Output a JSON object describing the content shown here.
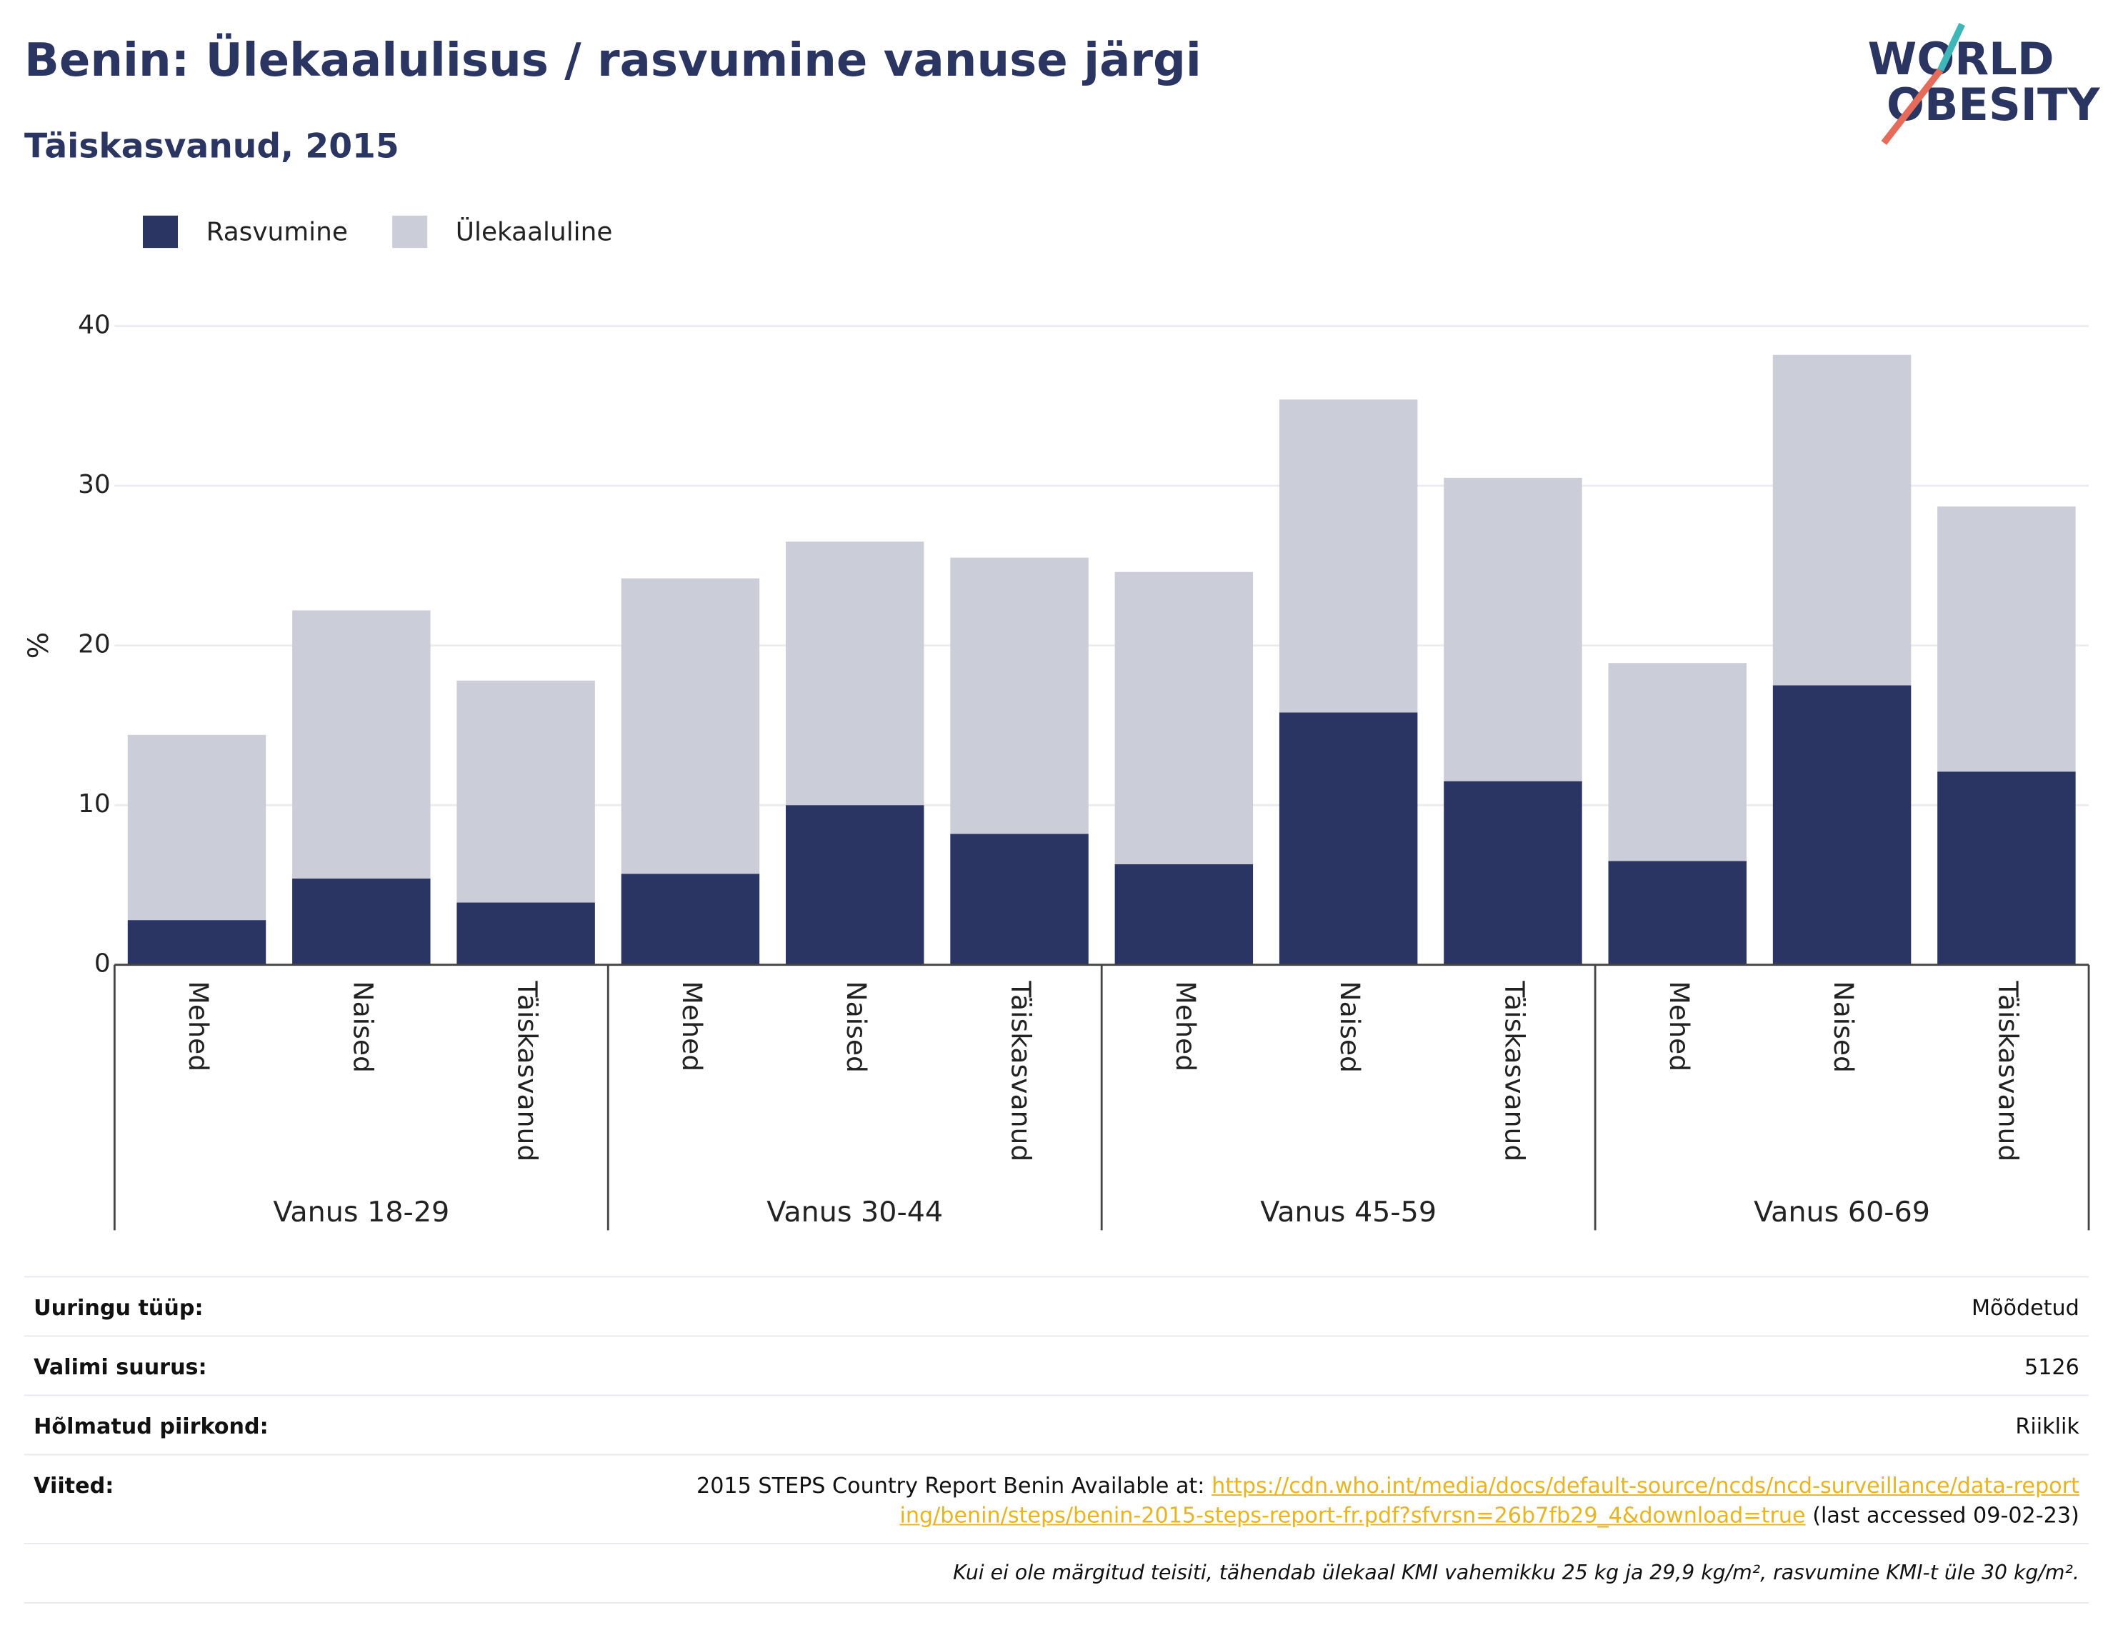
{
  "chart_data": {
    "type": "stacked-bar",
    "title": "Benin: Ülekaalulisus / rasvumine vanuse järgi",
    "subtitle": "Täiskasvanud, 2015",
    "y_label": "%",
    "logo": [
      "WORLD",
      "OBESITY"
    ],
    "categories": [
      "Mehed",
      "Naised",
      "Täiskasvanud",
      "Mehed",
      "Naised",
      "Täiskasvanud",
      "Mehed",
      "Naised",
      "Täiskasvanud",
      "Mehed",
      "Naised",
      "Täiskasvanud"
    ],
    "groups": [
      "Vanus 18-29",
      "Vanus 30-44",
      "Vanus 45-59",
      "Vanus 60-69"
    ],
    "series": [
      {
        "name": "Rasvumine",
        "color": "#2a3563",
        "values": [
          2.8,
          5.4,
          3.9,
          5.7,
          10.0,
          8.2,
          6.3,
          15.8,
          11.5,
          6.5,
          17.5,
          12.1
        ]
      },
      {
        "name": "Ülekaaluline",
        "color": "#cbcdd8",
        "values": [
          11.6,
          16.8,
          13.9,
          18.5,
          16.5,
          17.3,
          18.3,
          19.6,
          19.0,
          12.4,
          20.7,
          16.6
        ]
      }
    ],
    "ylim": [
      0,
      40
    ],
    "yticks": [
      0,
      10,
      20,
      30,
      40
    ],
    "grid": true
  },
  "footer": {
    "rows": [
      [
        "Uuringu tüüp:",
        "Mõõdetud"
      ],
      [
        "Valimi suurus:",
        "5126"
      ],
      [
        "Hõlmatud piirkond:",
        "Riiklik"
      ]
    ],
    "references": {
      "label": "Viited:",
      "text": "2015 STEPS Country Report Benin Available at:",
      "link": "https://cdn.who.int/media/docs/default-source/ncds/ncd-surveillance/data-reporting/benin/steps/benin-2015-steps-report-fr.pdf?sfvrsn=26b7fb29_4&download=true",
      "suffix": "(last accessed 09-02-23)"
    },
    "note": "Kui ei ole märgitud teisiti, tähendab ülekaal KMI vahemikku 25 kg ja 29,9 kg/m², rasvumine KMI-t üle 30 kg/m²."
  }
}
